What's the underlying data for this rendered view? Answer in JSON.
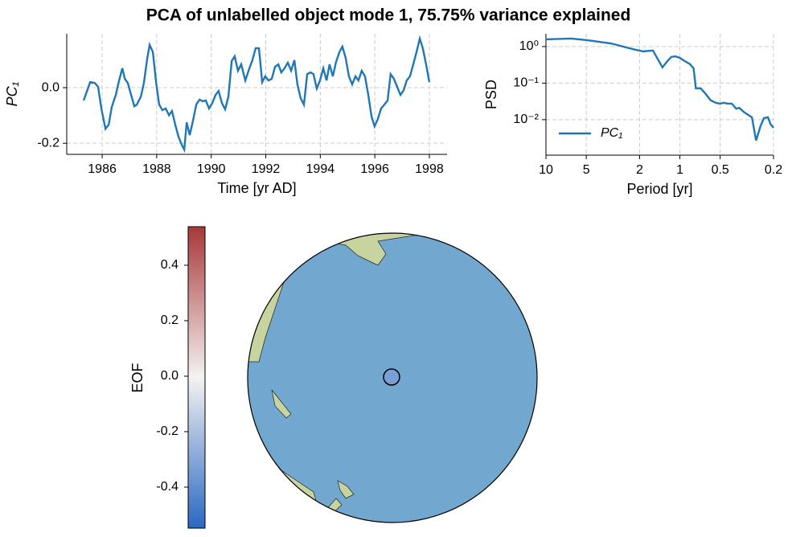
{
  "title": "PCA of unlabelled object mode 1, 75.75% variance explained",
  "chart_data": [
    {
      "type": "line",
      "xlabel": "Time [yr AD]",
      "ylabel": "PC₁",
      "color": "#1f77b4",
      "grid": true,
      "xlim": [
        1984.7,
        1998.65
      ],
      "ylim": [
        -0.24,
        0.194
      ],
      "xticks": [
        1986,
        1988,
        1990,
        1992,
        1994,
        1996,
        1998
      ],
      "yticks": [
        -0.2,
        {
          "value": 0,
          "label": "0.0"
        }
      ],
      "x": [
        1985.32,
        1985.56,
        1985.73,
        1985.85,
        1985.97,
        1986.12,
        1986.24,
        1986.35,
        1986.5,
        1986.62,
        1986.74,
        1986.83,
        1986.94,
        1987.06,
        1987.18,
        1987.27,
        1987.42,
        1987.53,
        1987.65,
        1987.74,
        1987.86,
        1987.98,
        1988.09,
        1988.21,
        1988.33,
        1988.45,
        1988.56,
        1988.68,
        1988.8,
        1988.92,
        1989.01,
        1989.1,
        1989.21,
        1989.33,
        1989.45,
        1989.57,
        1989.69,
        1989.8,
        1989.92,
        1990.04,
        1990.16,
        1990.27,
        1990.39,
        1990.51,
        1990.63,
        1990.75,
        1990.86,
        1990.98,
        1991.1,
        1991.25,
        1991.4,
        1991.51,
        1991.63,
        1991.75,
        1991.87,
        1991.98,
        1992.1,
        1992.22,
        1992.34,
        1992.46,
        1992.57,
        1992.69,
        1992.81,
        1992.93,
        1993.05,
        1993.16,
        1993.28,
        1993.4,
        1993.52,
        1993.64,
        1993.75,
        1993.87,
        1993.99,
        1994.11,
        1994.23,
        1994.34,
        1994.46,
        1994.58,
        1994.7,
        1994.81,
        1994.93,
        1995.05,
        1995.17,
        1995.29,
        1995.4,
        1995.52,
        1995.64,
        1995.76,
        1995.88,
        1995.99,
        1996.11,
        1996.23,
        1996.35,
        1996.47,
        1996.58,
        1996.7,
        1996.82,
        1996.94,
        1997.06,
        1997.17,
        1997.29,
        1997.41,
        1997.53,
        1997.65,
        1997.76,
        1997.88,
        1998.0
      ],
      "values": [
        -0.046,
        0.02,
        0.017,
        0.003,
        -0.075,
        -0.148,
        -0.133,
        -0.07,
        -0.026,
        0.026,
        0.07,
        0.032,
        0.017,
        -0.026,
        -0.067,
        -0.061,
        -0.032,
        0.017,
        0.104,
        0.154,
        0.128,
        0.017,
        -0.061,
        -0.081,
        -0.075,
        -0.099,
        -0.084,
        -0.133,
        -0.177,
        -0.206,
        -0.223,
        -0.125,
        -0.171,
        -0.119,
        -0.061,
        -0.043,
        -0.049,
        -0.046,
        -0.075,
        -0.055,
        -0.026,
        -0.012,
        -0.055,
        -0.078,
        -0.032,
        0.096,
        0.113,
        0.061,
        0.084,
        0.026,
        0.07,
        0.099,
        0.142,
        0.142,
        0.02,
        0.041,
        0.026,
        0.032,
        0.075,
        0.084,
        0.055,
        0.07,
        0.09,
        0.061,
        0.099,
        0.012,
        -0.038,
        -0.061,
        0.049,
        0.055,
        0.049,
        -0.003,
        0.026,
        0.07,
        0.026,
        0.084,
        0.041,
        0.093,
        0.128,
        0.148,
        0.107,
        0.041,
        0.012,
        0.041,
        0.026,
        0.061,
        0.041,
        -0.026,
        -0.104,
        -0.139,
        -0.113,
        -0.075,
        -0.061,
        -0.046,
        0.049,
        0.032,
        0.003,
        -0.026,
        -0.009,
        0.026,
        0.041,
        0.084,
        0.128,
        0.177,
        0.142,
        0.084,
        0.02
      ]
    },
    {
      "type": "line",
      "xlabel": "Period [yr]",
      "ylabel": "PSD",
      "grid": true,
      "xscale": "log",
      "yscale": "log",
      "legend": "lower left",
      "xlim": [
        10,
        0.2
      ],
      "ylim": [
        0.00107,
        2.24
      ],
      "xticks": [
        10,
        5,
        2,
        1,
        0.5,
        0.2
      ],
      "yticks": [
        {
          "value": 1,
          "label": "10⁰"
        },
        {
          "value": 0.1,
          "label": "10⁻¹"
        },
        {
          "value": 0.01,
          "label": "10⁻²"
        }
      ],
      "x": [
        10,
        6.52,
        4.94,
        3.27,
        2.16,
        1.88,
        1.59,
        1.47,
        1.35,
        1.24,
        1.16,
        1.08,
        1.0,
        0.92,
        0.84,
        0.79,
        0.76,
        0.7,
        0.64,
        0.59,
        0.54,
        0.5,
        0.47,
        0.44,
        0.41,
        0.38,
        0.36,
        0.33,
        0.31,
        0.29,
        0.28,
        0.27,
        0.26,
        0.25,
        0.236,
        0.22,
        0.21,
        0.2
      ],
      "series": [
        {
          "name": "PC₁",
          "color": "#1f77b4",
          "values": [
            1.58,
            1.66,
            1.5,
            1.22,
            0.82,
            0.74,
            0.78,
            0.47,
            0.27,
            0.4,
            0.52,
            0.54,
            0.49,
            0.4,
            0.33,
            0.255,
            0.072,
            0.072,
            0.05,
            0.034,
            0.029,
            0.0275,
            0.029,
            0.0275,
            0.0275,
            0.02,
            0.021,
            0.0158,
            0.0136,
            0.0116,
            0.0057,
            0.0027,
            0.0042,
            0.0067,
            0.011,
            0.0116,
            0.0074,
            0.006
          ]
        }
      ]
    },
    {
      "type": "map",
      "colorbar": {
        "label": "EOF",
        "lim": [
          -0.548,
          0.539
        ],
        "colors": [
          "#2a68c2",
          "#f4f2f2",
          "#a83838"
        ],
        "ticks": [
          -0.4,
          -0.2,
          {
            "value": 0,
            "label": "0.0"
          },
          0.2,
          0.4
        ]
      },
      "points": [
        {
          "value": -0.33
        }
      ]
    }
  ]
}
